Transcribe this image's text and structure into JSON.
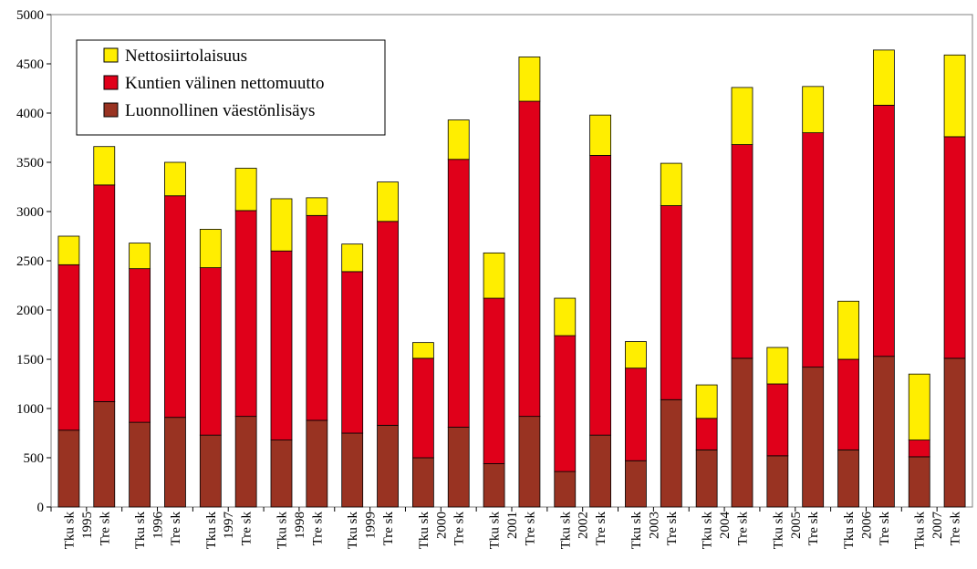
{
  "chart_data": {
    "type": "bar",
    "stacked": true,
    "categories": [
      "Tku sk 1995",
      "Tre sk 1995",
      "Tku sk 1996",
      "Tre sk 1996",
      "Tku sk 1997",
      "Tre sk 1997",
      "Tku sk 1998",
      "Tre sk 1998",
      "Tku sk 1999",
      "Tre sk 1999",
      "Tku sk 2000",
      "Tre sk 2000",
      "Tku sk 2001",
      "Tre sk 2001",
      "Tku sk 2002",
      "Tre sk 2002",
      "Tku sk 2003",
      "Tre sk 2003",
      "Tku sk 2004",
      "Tre sk 2004",
      "Tku sk 2005",
      "Tre sk 2005",
      "Tku sk 2006",
      "Tre sk 2006",
      "Tku sk 2007",
      "Tre sk 2007"
    ],
    "region_labels": [
      "Tku sk",
      "Tre sk",
      "Tku sk",
      "Tre sk",
      "Tku sk",
      "Tre sk",
      "Tku sk",
      "Tre sk",
      "Tku sk",
      "Tre sk",
      "Tku sk",
      "Tre sk",
      "Tku sk",
      "Tre sk",
      "Tku sk",
      "Tre sk",
      "Tku sk",
      "Tre sk",
      "Tku sk",
      "Tre sk",
      "Tku sk",
      "Tre sk",
      "Tku sk",
      "Tre sk",
      "Tku sk",
      "Tre sk"
    ],
    "year_labels": [
      "1995",
      "1996",
      "1997",
      "1998",
      "1999",
      "2000",
      "2001",
      "2002",
      "2003",
      "2004",
      "2005",
      "2006",
      "2007"
    ],
    "series": [
      {
        "name": "Luonnollinen väestönlisäys",
        "color": "#993322",
        "values": [
          780,
          1070,
          860,
          910,
          730,
          920,
          680,
          880,
          750,
          830,
          500,
          810,
          440,
          920,
          360,
          730,
          470,
          1090,
          580,
          1510,
          520,
          1420,
          580,
          1530,
          510,
          1510
        ]
      },
      {
        "name": "Kuntien välinen nettomuutto",
        "color": "#e0001a",
        "values": [
          1680,
          2200,
          1560,
          2250,
          1700,
          2090,
          1920,
          2080,
          1640,
          2070,
          1010,
          2720,
          1680,
          3200,
          1380,
          2840,
          940,
          1970,
          320,
          2170,
          730,
          2380,
          920,
          2550,
          170,
          2250
        ]
      },
      {
        "name": "Nettosiirtolaisuus",
        "color": "#ffee00",
        "values": [
          290,
          390,
          260,
          340,
          390,
          430,
          530,
          180,
          280,
          400,
          160,
          400,
          460,
          450,
          380,
          410,
          270,
          430,
          340,
          580,
          370,
          470,
          590,
          560,
          670,
          830
        ]
      }
    ],
    "legend": [
      "Nettosiirtolaisuus",
      "Kuntien välinen nettomuutto",
      "Luonnollinen väestönlisäys"
    ],
    "legend_position": "top-left",
    "ylim": [
      0,
      5000
    ],
    "yticks": [
      "0",
      "500",
      "1000",
      "1500",
      "2000",
      "2500",
      "3000",
      "3500",
      "4000",
      "4500",
      "5000"
    ],
    "grid": false,
    "title": "",
    "xlabel": "",
    "ylabel": ""
  }
}
